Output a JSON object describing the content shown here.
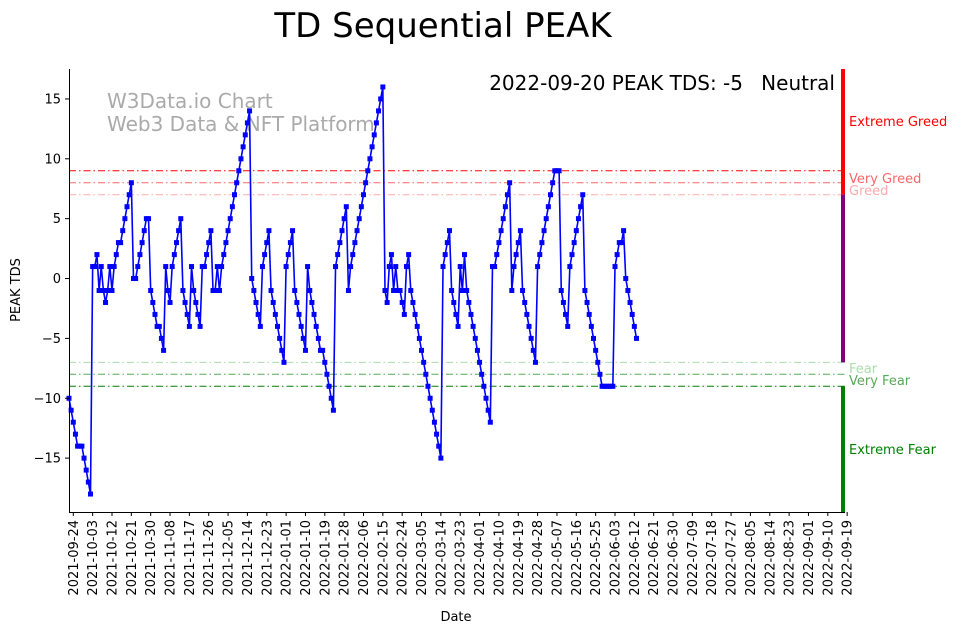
{
  "chart_data": {
    "type": "line",
    "title": "TD Sequential PEAK",
    "xlabel": "Date",
    "ylabel": "PEAK TDS",
    "ylim": [
      -19.5,
      17.5
    ],
    "xlim": [
      0,
      361
    ],
    "yticks": [
      15,
      10,
      5,
      0,
      -5,
      -10,
      -15
    ],
    "xtick_labels": [
      "2021-09-24",
      "2021-10-03",
      "2021-10-12",
      "2021-10-21",
      "2021-10-30",
      "2021-11-08",
      "2021-11-17",
      "2021-11-26",
      "2021-12-05",
      "2021-12-14",
      "2021-12-23",
      "2022-01-01",
      "2022-01-10",
      "2022-01-19",
      "2022-01-28",
      "2022-02-06",
      "2022-02-15",
      "2022-02-24",
      "2022-03-05",
      "2022-03-14",
      "2022-03-23",
      "2022-04-01",
      "2022-04-10",
      "2022-04-19",
      "2022-04-28",
      "2022-05-07",
      "2022-05-16",
      "2022-05-25",
      "2022-06-03",
      "2022-06-12",
      "2022-06-21",
      "2022-06-30",
      "2022-07-09",
      "2022-07-18",
      "2022-07-27",
      "2022-08-05",
      "2022-08-14",
      "2022-08-23",
      "2022-09-01",
      "2022-09-10",
      "2022-09-19"
    ],
    "xtick_step": 9,
    "first_xtick_day": 2,
    "series": [
      {
        "name": "PEAK TDS",
        "color": "#0000ff",
        "start_date": "2021-09-22",
        "values": [
          -10,
          -11,
          -12,
          -13,
          -14,
          -14,
          -14,
          -15,
          -16,
          -17,
          -18,
          1,
          1,
          2,
          -1,
          1,
          -1,
          -2,
          -1,
          1,
          -1,
          1,
          2,
          3,
          3,
          4,
          5,
          6,
          7,
          8,
          0,
          0,
          1,
          2,
          3,
          4,
          5,
          5,
          -1,
          -2,
          -3,
          -4,
          -4,
          -5,
          -6,
          1,
          -1,
          -2,
          1,
          2,
          3,
          4,
          5,
          -1,
          -2,
          -3,
          -4,
          1,
          -1,
          -2,
          -3,
          -4,
          1,
          1,
          2,
          3,
          4,
          -1,
          -1,
          1,
          -1,
          1,
          2,
          3,
          4,
          5,
          6,
          7,
          8,
          9,
          10,
          11,
          12,
          13,
          14,
          0,
          -1,
          -2,
          -3,
          -4,
          1,
          2,
          3,
          4,
          -1,
          -2,
          -3,
          -4,
          -5,
          -6,
          -7,
          1,
          2,
          3,
          4,
          -1,
          -2,
          -3,
          -4,
          -5,
          -6,
          1,
          -1,
          -2,
          -3,
          -4,
          -5,
          -6,
          -6,
          -7,
          -8,
          -9,
          -10,
          -11,
          1,
          2,
          3,
          4,
          5,
          6,
          -1,
          1,
          2,
          3,
          4,
          5,
          6,
          7,
          8,
          9,
          10,
          11,
          12,
          13,
          14,
          15,
          16,
          -1,
          -2,
          1,
          2,
          -1,
          1,
          -1,
          -1,
          -2,
          -3,
          1,
          2,
          -1,
          -2,
          -3,
          -4,
          -5,
          -6,
          -7,
          -8,
          -9,
          -10,
          -11,
          -12,
          -13,
          -14,
          -15,
          1,
          2,
          3,
          4,
          -1,
          -2,
          -3,
          -4,
          1,
          -1,
          2,
          -1,
          -2,
          -3,
          -4,
          -5,
          -6,
          -7,
          -8,
          -9,
          -10,
          -11,
          -12,
          1,
          1,
          2,
          3,
          4,
          5,
          6,
          7,
          8,
          -1,
          1,
          2,
          3,
          4,
          -1,
          -2,
          -3,
          -4,
          -5,
          -6,
          -7,
          1,
          2,
          3,
          4,
          5,
          6,
          7,
          8,
          9,
          9,
          9,
          -1,
          -2,
          -3,
          -4,
          1,
          2,
          3,
          4,
          5,
          6,
          7,
          -1,
          -2,
          -3,
          -4,
          -5,
          -6,
          -7,
          -8,
          -9,
          -9,
          -9,
          -9,
          -9,
          -9,
          1,
          2,
          3,
          3,
          4,
          0,
          -1,
          -2,
          -3,
          -4,
          -5
        ]
      }
    ],
    "thresholds": [
      {
        "value": 9,
        "color": "#ff0000",
        "style": "dashdot",
        "label": "Extreme Greed"
      },
      {
        "value": 8,
        "color": "#ff6666",
        "style": "dashdot",
        "label": "Very Greed"
      },
      {
        "value": 7,
        "color": "#ffaaaa",
        "style": "dashdot",
        "label": "Greed"
      },
      {
        "value": -7,
        "color": "#aaddaa",
        "style": "dashdot",
        "label": "Fear"
      },
      {
        "value": -8,
        "color": "#55aa55",
        "style": "dashdot",
        "label": "Very Fear"
      },
      {
        "value": -9,
        "color": "#008000",
        "style": "dashdot",
        "label": "Extreme Fear"
      }
    ],
    "side_bar": [
      {
        "from": 7,
        "to": 17.5,
        "color": "#ff0000"
      },
      {
        "from": -7,
        "to": 7,
        "color": "#800080"
      },
      {
        "from": -19.5,
        "to": -9,
        "color": "#008000"
      }
    ],
    "annotation": {
      "text": "2022-09-20 PEAK TDS: -5",
      "status": "Neutral",
      "status_color": "#800080"
    },
    "watermark": [
      "W3Data.io Chart",
      "Web3 Data & NFT Platform"
    ]
  }
}
